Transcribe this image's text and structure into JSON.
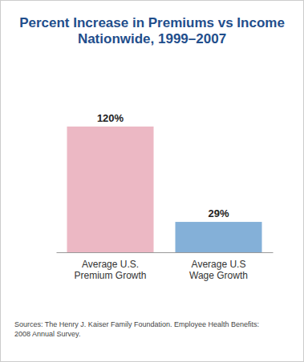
{
  "chart_data": {
    "type": "bar",
    "title": "Percent Increase in Premiums vs Income\nNationwide, 1999–2007",
    "categories": [
      "Average U.S.\nPremium Growth",
      "Average U.S\nWage Growth"
    ],
    "values": [
      120,
      29
    ],
    "value_labels": [
      "120%",
      "29%"
    ],
    "colors": [
      "#ecb8c4",
      "#84b0d8"
    ],
    "ylim": [
      0,
      120
    ],
    "data_labels": true,
    "tick_labels": "x",
    "grid": false,
    "source": "Sources: The Henry J. Kaiser Family Foundation. Employee Health Benefits:\n2008 Annual Survey."
  }
}
